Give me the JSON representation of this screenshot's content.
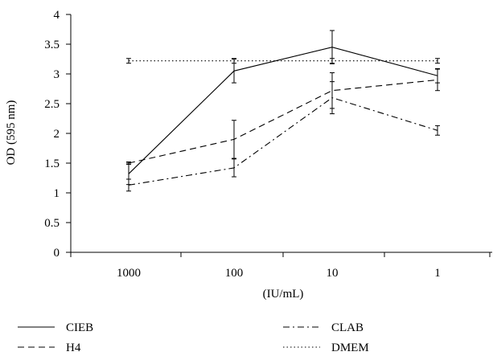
{
  "chart_data": {
    "type": "line",
    "title": "",
    "xlabel": "(IU/mL)",
    "ylabel": "OD (595 nm)",
    "categories": [
      "1000",
      "100",
      "10",
      "1"
    ],
    "ylim": [
      0,
      4
    ],
    "yticks": [
      "0",
      "0.5",
      "1",
      "1.5",
      "2",
      "2.5",
      "3",
      "3.5",
      "4"
    ],
    "grid": false,
    "legend_position": "bottom",
    "series": [
      {
        "name": "CIEB",
        "line_style": "solid",
        "values": [
          1.32,
          3.05,
          3.45,
          2.97
        ],
        "error": [
          0.18,
          0.2,
          0.28,
          0.12
        ]
      },
      {
        "name": "H4",
        "line_style": "dashed",
        "values": [
          1.5,
          1.9,
          2.72,
          2.9
        ],
        "error": [
          0.02,
          0.32,
          0.3,
          0.18
        ]
      },
      {
        "name": "CLAB",
        "line_style": "dash-dot",
        "values": [
          1.13,
          1.42,
          2.6,
          2.05
        ],
        "error": [
          0.1,
          0.15,
          0.27,
          0.08
        ]
      },
      {
        "name": "DMEM",
        "line_style": "dotted",
        "values": [
          3.22,
          3.22,
          3.22,
          3.22
        ],
        "error": [
          0.04,
          0.04,
          0.04,
          0.04
        ]
      }
    ]
  }
}
